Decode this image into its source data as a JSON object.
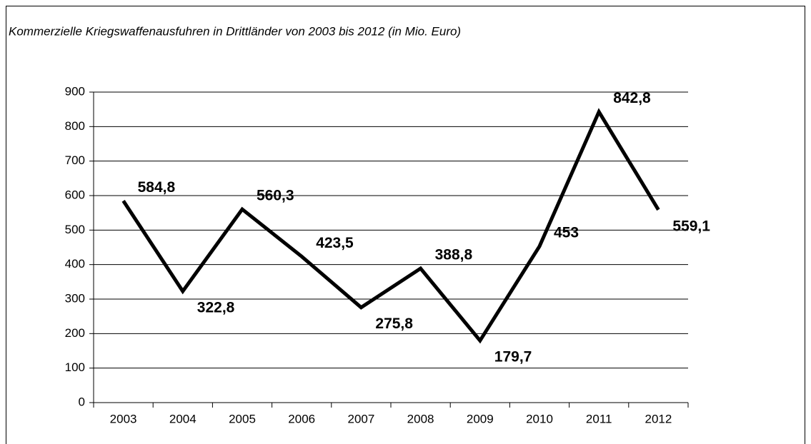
{
  "chart_data": {
    "type": "line",
    "title": "Kommerzielle Kriegswaffenausfuhren in Drittländer von 2003 bis 2012 (in Mio. Euro)",
    "categories": [
      "2003",
      "2004",
      "2005",
      "2006",
      "2007",
      "2008",
      "2009",
      "2010",
      "2011",
      "2012"
    ],
    "series": [
      {
        "name": "Kriegswaffenausfuhren",
        "color": "#000000",
        "values": [
          584.8,
          322.8,
          560.3,
          423.5,
          275.8,
          388.8,
          179.7,
          453,
          842.8,
          559.1
        ],
        "value_labels": [
          "584,8",
          "322,8",
          "560,3",
          "423,5",
          "275,8",
          "388,8",
          "179,7",
          "453",
          "842,8",
          "559,1"
        ]
      }
    ],
    "ylim": [
      0,
      900
    ],
    "yticks": [
      0,
      100,
      200,
      300,
      400,
      500,
      600,
      700,
      800,
      900
    ],
    "grid": true
  }
}
